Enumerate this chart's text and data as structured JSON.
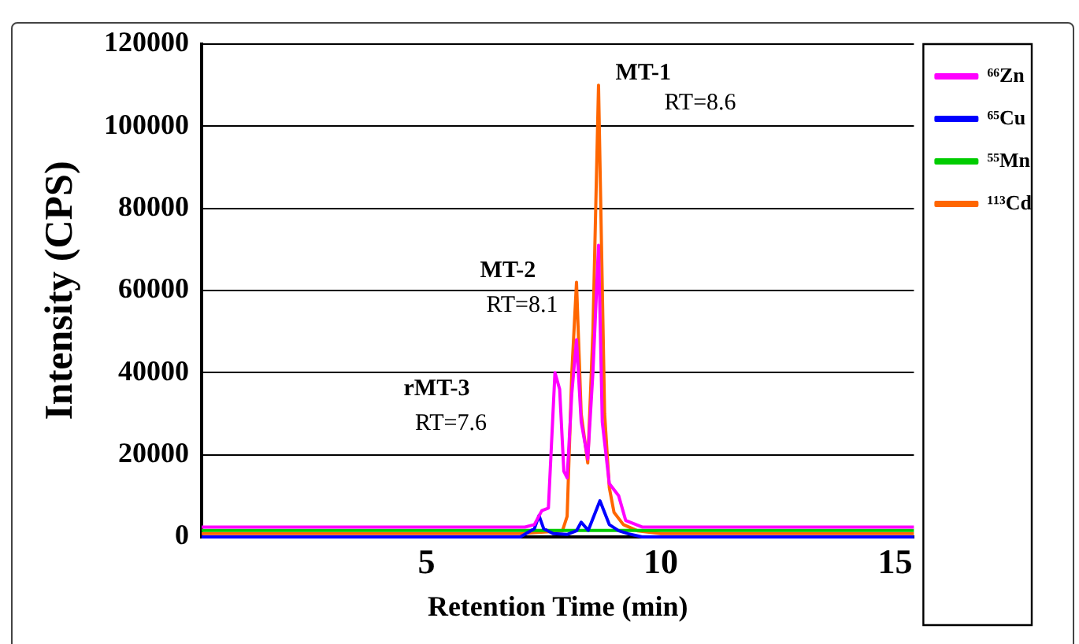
{
  "chart_data": {
    "type": "line",
    "xlabel": "Retention Time (min)",
    "ylabel": "Intensity (CPS)",
    "xlim": [
      0.2,
      15.4
    ],
    "xticks": [
      5,
      10,
      15
    ],
    "ylim": [
      0,
      120000
    ],
    "yticks": [
      0,
      20000,
      40000,
      60000,
      80000,
      100000,
      120000
    ],
    "grid": "y",
    "legend": "top right",
    "marker": "none",
    "line_style": "solid",
    "series": [
      {
        "name": "⁶⁶Zn",
        "color": "#ff00ff",
        "x": [
          0.2,
          3,
          6,
          7.1,
          7.3,
          7.46,
          7.6,
          7.74,
          7.84,
          7.93,
          8.0,
          8.1,
          8.2,
          8.3,
          8.44,
          8.55,
          8.67,
          8.75,
          8.9,
          9.1,
          9.25,
          9.6,
          10,
          12,
          15.4
        ],
        "values": [
          2400,
          2400,
          2400,
          2400,
          3000,
          6400,
          7000,
          40000,
          36000,
          16000,
          14400,
          35000,
          48000,
          28000,
          19000,
          40000,
          71000,
          28000,
          13000,
          10000,
          4000,
          2400,
          2400,
          2400,
          2400
        ]
      },
      {
        "name": "⁶⁵Cu",
        "color": "#0000ff",
        "x": [
          0.2,
          3,
          6,
          7.0,
          7.3,
          7.4,
          7.5,
          7.7,
          8.0,
          8.2,
          8.3,
          8.45,
          8.7,
          8.9,
          9.1,
          9.3,
          9.6,
          10,
          12,
          15.4
        ],
        "values": [
          0,
          0,
          0,
          0,
          2000,
          5200,
          2000,
          800,
          600,
          1500,
          3600,
          1600,
          8800,
          3000,
          1500,
          800,
          0,
          0,
          0,
          0
        ]
      },
      {
        "name": "⁵⁵Mn",
        "color": "#00cc00",
        "x": [
          0.2,
          3,
          6,
          9,
          12,
          15.4
        ],
        "values": [
          1600,
          1600,
          1600,
          1600,
          1600,
          1600
        ]
      },
      {
        "name": "¹¹³Cd",
        "color": "#ff6600",
        "x": [
          0.2,
          3,
          6,
          7.0,
          7.9,
          8.0,
          8.1,
          8.2,
          8.3,
          8.44,
          8.55,
          8.67,
          8.8,
          8.9,
          9.0,
          9.2,
          9.5,
          10,
          12,
          15.4
        ],
        "values": [
          800,
          800,
          800,
          800,
          1500,
          5000,
          40000,
          62000,
          30000,
          18000,
          50000,
          110000,
          30000,
          12000,
          6000,
          3000,
          1500,
          800,
          800,
          800
        ]
      }
    ],
    "annotations": [
      "MT-1",
      "RT=8.6",
      "MT-2",
      "RT=8.1",
      "rMT-3",
      "RT=7.6"
    ]
  }
}
